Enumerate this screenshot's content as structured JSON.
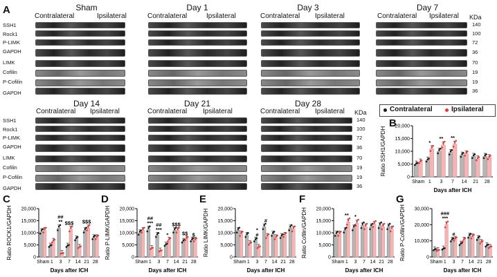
{
  "panel_letters": {
    "A": "A",
    "B": "B",
    "C": "C",
    "D": "D",
    "E": "E",
    "F": "F",
    "G": "G"
  },
  "groups": {
    "contra": "Contralateral",
    "ipsi": "Ipsilateral"
  },
  "kda_label": "KDa",
  "blot_rows_top": [
    "SSH1",
    "Rock1",
    "P-LIMK",
    "GAPDH",
    "LIMK",
    "Cofilin",
    "P-Cofilin",
    "GAPDH"
  ],
  "blot_rows_bottom": [
    "SSH1",
    "Rock1",
    "P-LIMK",
    "GAPDH",
    "LIMK",
    "Cofilin",
    "P-Cofilin",
    "GAPDH"
  ],
  "kda_top": [
    "140",
    "100",
    "72",
    "36",
    "70",
    "19",
    "19",
    "36"
  ],
  "kda_bottom": [
    "140",
    "100",
    "72",
    "36",
    "70",
    "19",
    "19",
    "36"
  ],
  "blot_titles": {
    "sham": "Sham",
    "d1": "Day 1",
    "d3": "Day 3",
    "d7": "Day 7",
    "d14": "Day 14",
    "d21": "Day 21",
    "d28": "Day 28"
  },
  "legend": {
    "contra": "Contralateral",
    "ipsi": "Ipsilateral",
    "contra_color": "#1a1a1a",
    "ipsi_color": "#e23b3b"
  },
  "bar_colors": {
    "contra": "#b5b5b5",
    "ipsi": "#f2b6b6"
  },
  "chart_data": [
    {
      "id": "B",
      "type": "bar",
      "ylabel": "Ratio SSH1/GAPDH",
      "xlabel": "Days after ICH",
      "categories": [
        "Sham",
        "1",
        "3",
        "7",
        "14",
        "21",
        "28"
      ],
      "ylim": [
        0,
        20000
      ],
      "yticks": [
        "0",
        "5,000",
        "10,000",
        "15,000",
        "20,000"
      ],
      "series": [
        {
          "name": "Contralateral",
          "values": [
            5000,
            6500,
            10000,
            9500,
            8500,
            8000,
            8000
          ]
        },
        {
          "name": "Ipsilateral",
          "values": [
            5800,
            11000,
            12500,
            12800,
            9000,
            7000,
            7500
          ]
        }
      ],
      "annotations": [
        {
          "cat": "1",
          "text": "*"
        },
        {
          "cat": "3",
          "text": "**"
        },
        {
          "cat": "7",
          "text": "**"
        }
      ]
    },
    {
      "id": "C",
      "type": "bar",
      "ylabel": "Ratio ROCK1/GAPDH",
      "xlabel": "Days after ICH",
      "categories": [
        "Sham",
        "1",
        "3",
        "7",
        "14",
        "21",
        "28"
      ],
      "ylim": [
        0,
        20000
      ],
      "yticks": [
        "0",
        "5,000",
        "10,000",
        "15,000",
        "20,000"
      ],
      "series": [
        {
          "name": "Contralateral",
          "values": [
            10500,
            4500,
            12000,
            4500,
            7500,
            11000,
            8000
          ]
        },
        {
          "name": "Ipsilateral",
          "values": [
            11000,
            6500,
            1500,
            11500,
            4000,
            12000,
            8000
          ]
        }
      ],
      "annotations": [
        {
          "cat": "3",
          "text": "##\n**"
        },
        {
          "cat": "7",
          "text": "$$$"
        },
        {
          "cat": "21",
          "text": "$$$"
        }
      ]
    },
    {
      "id": "D",
      "type": "bar",
      "ylabel": "Ratio P-LIMK/GAPDH",
      "xlabel": "Days after ICH",
      "categories": [
        "Sham",
        "1",
        "3",
        "7",
        "14",
        "21",
        "28"
      ],
      "ylim": [
        0,
        20000
      ],
      "yticks": [
        "0",
        "5,000",
        "10,000",
        "15,000",
        "20,000"
      ],
      "series": [
        {
          "name": "Contralateral",
          "values": [
            10000,
            11500,
            9000,
            5000,
            11000,
            6500,
            7000
          ]
        },
        {
          "name": "Ipsilateral",
          "values": [
            11000,
            3500,
            2500,
            7000,
            11000,
            7500,
            7000
          ]
        }
      ],
      "annotations": [
        {
          "cat": "1",
          "text": "##\n***"
        },
        {
          "cat": "3",
          "text": "##\n***"
        },
        {
          "cat": "7",
          "text": "*"
        },
        {
          "cat": "14",
          "text": "$$$"
        },
        {
          "cat": "21",
          "text": "$$"
        },
        {
          "cat": "28",
          "text": "$"
        }
      ]
    },
    {
      "id": "E",
      "type": "bar",
      "ylabel": "Ratio LIMK/GAPDH",
      "xlabel": "Days after ICH",
      "categories": [
        "Sham",
        "1",
        "3",
        "7",
        "14",
        "21",
        "28"
      ],
      "ylim": [
        0,
        20000
      ],
      "yticks": [
        "0",
        "5,000",
        "10,000",
        "15,000",
        "20,000"
      ],
      "series": [
        {
          "name": "Contralateral",
          "values": [
            11000,
            9000,
            7000,
            12500,
            9500,
            8500,
            12000
          ]
        },
        {
          "name": "Ipsilateral",
          "values": [
            9500,
            5500,
            4000,
            8500,
            8000,
            9000,
            11500
          ]
        }
      ],
      "annotations": [
        {
          "cat": "3",
          "text": "*\n#"
        },
        {
          "cat": "7",
          "text": "#"
        }
      ]
    },
    {
      "id": "F",
      "type": "bar",
      "ylabel": "Ratio Cofilin/GAPDH",
      "xlabel": "Days after ICH",
      "categories": [
        "Sham",
        "1",
        "3",
        "7",
        "14",
        "21",
        "28"
      ],
      "ylim": [
        0,
        20000
      ],
      "yticks": [
        "0",
        "5,000",
        "10,000",
        "15,000",
        "20,000"
      ],
      "series": [
        {
          "name": "Contralateral",
          "values": [
            9500,
            11000,
            12000,
            13000,
            12500,
            13000,
            12500
          ]
        },
        {
          "name": "Ipsilateral",
          "values": [
            9500,
            14500,
            14000,
            12500,
            13500,
            12500,
            11500
          ]
        }
      ],
      "annotations": [
        {
          "cat": "1",
          "text": "**"
        },
        {
          "cat": "3",
          "text": "*"
        }
      ]
    },
    {
      "id": "G",
      "type": "bar",
      "ylabel": "Ratio P-Cofilin/GAPDH",
      "xlabel": "Days after ICH",
      "categories": [
        "Sham",
        "1",
        "3",
        "7",
        "14",
        "21",
        "28"
      ],
      "ylim": [
        0,
        30000
      ],
      "yticks": [
        "0",
        "10,000",
        "20,000",
        "30,000"
      ],
      "series": [
        {
          "name": "Contralateral",
          "values": [
            4500,
            5000,
            10500,
            8000,
            13000,
            11500,
            7000
          ]
        },
        {
          "name": "Ipsilateral",
          "values": [
            4000,
            20000,
            11000,
            10500,
            12500,
            9000,
            6000
          ]
        }
      ],
      "annotations": [
        {
          "cat": "1",
          "text": "###\n***"
        },
        {
          "cat": "3",
          "text": "#"
        }
      ]
    }
  ]
}
